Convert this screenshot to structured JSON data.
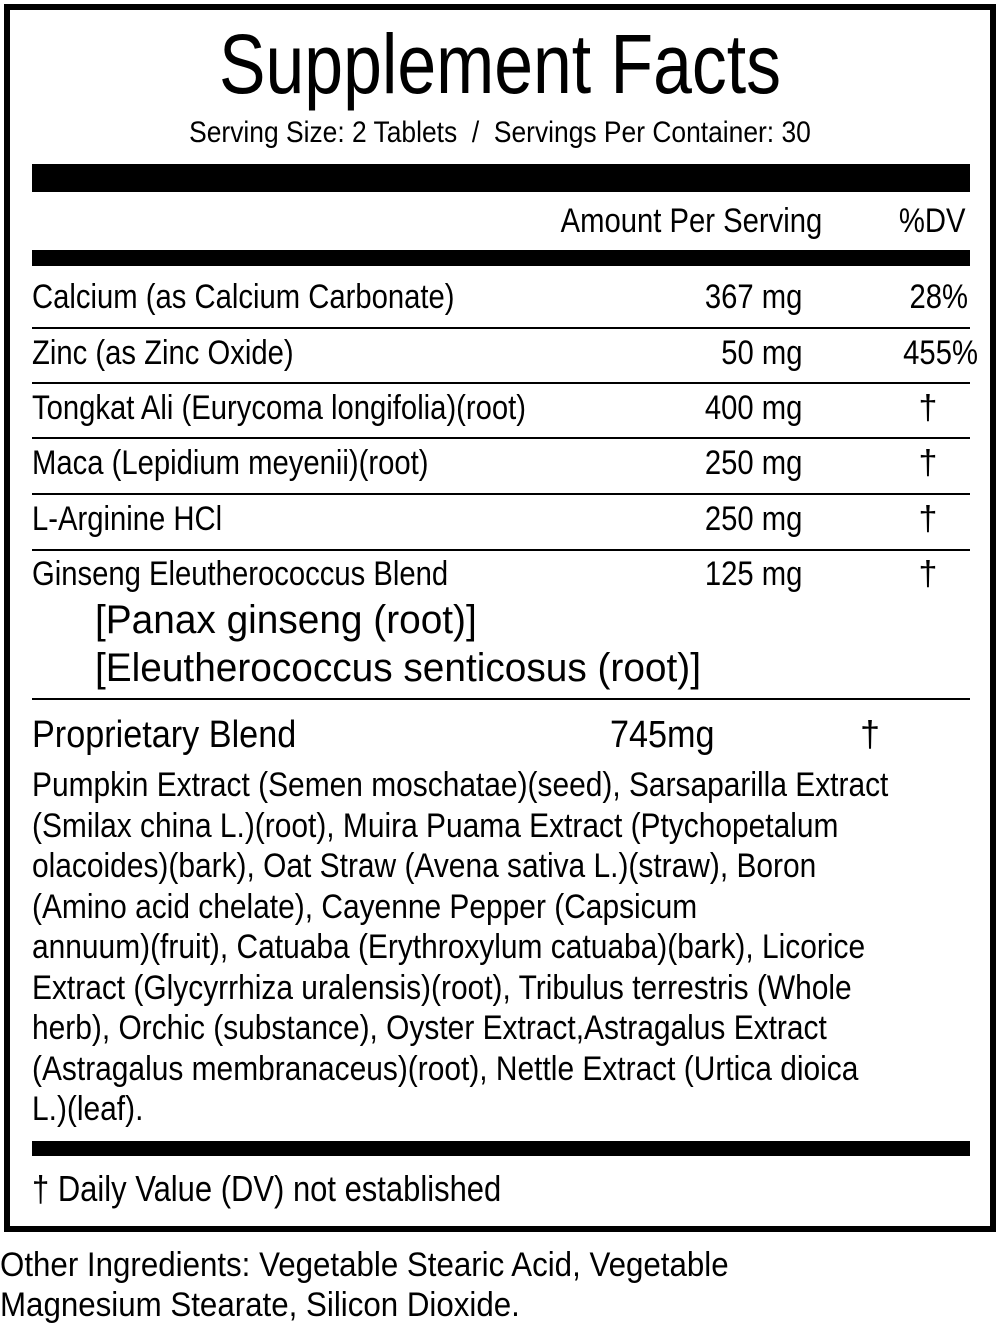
{
  "title": "Supplement Facts",
  "serving_line": "Serving Size: 2 Tablets  /  Servings Per Container: 30",
  "header": {
    "amount": "Amount Per Serving",
    "dv": "%DV"
  },
  "rows": [
    {
      "name": "Calcium (as Calcium Carbonate)",
      "amount": "367 mg",
      "dv": "28%"
    },
    {
      "name": "Zinc (as Zinc Oxide)",
      "amount": "50 mg",
      "dv": "455%"
    },
    {
      "name": "Tongkat Ali (Eurycoma longifolia)(root)",
      "amount": "400 mg",
      "dv": "†"
    },
    {
      "name": "Maca (Lepidium meyenii)(root)",
      "amount": "250 mg",
      "dv": "†"
    },
    {
      "name": "L-Arginine HCl",
      "amount": "250 mg",
      "dv": "†"
    },
    {
      "name": "Ginseng Eleutherococcus Blend",
      "amount": "125 mg",
      "dv": "†",
      "sub": [
        "[Panax ginseng (root)]",
        "[Eleutherococcus senticosus (root)]"
      ]
    }
  ],
  "blend": {
    "name": "Proprietary Blend",
    "amount": "745mg",
    "dv": "†",
    "lines": [
      "Pumpkin Extract (Semen moschatae)(seed), Sarsaparilla Extract",
      "(Smilax china L.)(root), Muira Puama Extract (Ptychopetalum",
      "olacoides)(bark), Oat Straw (Avena sativa L.)(straw), Boron",
      "(Amino acid chelate), Cayenne Pepper (Capsicum",
      "annuum)(fruit), Catuaba (Erythroxylum catuaba)(bark), Licorice",
      "Extract (Glycyrrhiza uralensis)(root), Tribulus terrestris (Whole",
      "herb), Orchic (substance), Oyster Extract,Astragalus Extract",
      "(Astragalus membranaceus)(root), Nettle Extract (Urtica dioica",
      "L.)(leaf)."
    ]
  },
  "footnote": "† Daily Value (DV) not established",
  "other_ingredients": [
    "Other Ingredients: Vegetable Stearic Acid, Vegetable",
    "Magnesium Stearate, Silicon Dioxide."
  ]
}
